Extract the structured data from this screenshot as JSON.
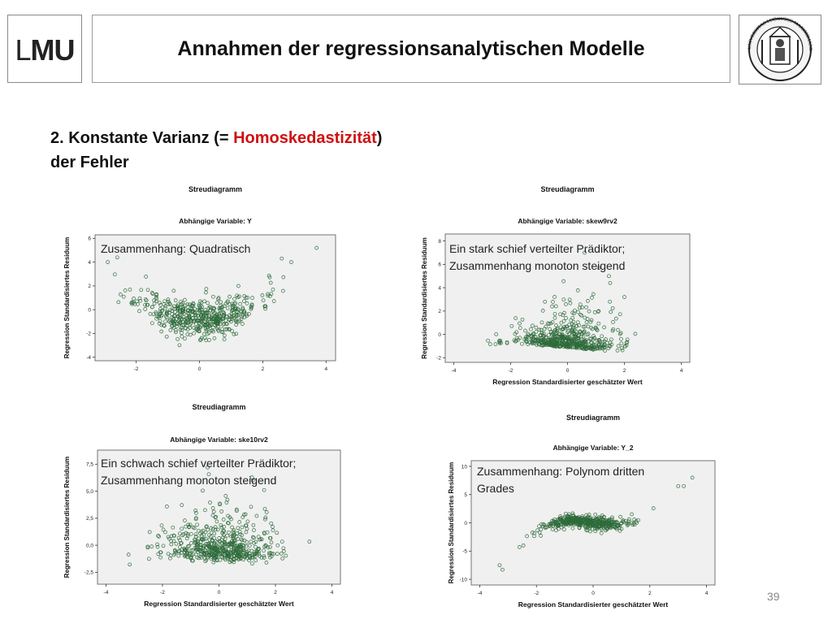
{
  "header": {
    "logo_text_l": "L",
    "logo_text_mu": "MU",
    "title": "Annahmen der regressionsanalytischen Modelle",
    "seal_text": "UNIVERSITAS LUDOVICO MAXIMILIANEA"
  },
  "heading": {
    "part1": "2. Konstante Varianz (= ",
    "highlight": "Homoskedastizität",
    "part2": ")",
    "line2": "der Fehler"
  },
  "accent_colors": {
    "highlight": "#d01010",
    "points": "#2e6b3a"
  },
  "page_number": "39",
  "chart_data": [
    {
      "type": "scatter",
      "title": "Streudiagramm",
      "subtitle": "Abhängige Variable: Y",
      "xlabel": "",
      "ylabel": "Regression Standardisiertes Residuum",
      "annotation": [
        "Zusammenhang: Quadratisch"
      ],
      "xlim": [
        -3.3,
        4.3
      ],
      "ylim": [
        -4.3,
        6.3
      ],
      "xticks": [
        -2,
        0,
        2,
        4
      ],
      "xtick_labels": [
        "-2",
        "0",
        "2",
        "4"
      ],
      "yticks": [
        -4,
        -2,
        0,
        2,
        4,
        6
      ],
      "ytick_labels": [
        "-4",
        "-2",
        "0",
        "2",
        "4",
        "6"
      ],
      "pattern": "quadratic",
      "n_points": 520,
      "outliers": [
        [
          3.7,
          5.2
        ],
        [
          2.6,
          4.3
        ],
        [
          2.9,
          4.0
        ],
        [
          -2.9,
          4.0
        ],
        [
          -2.6,
          4.4
        ]
      ]
    },
    {
      "type": "scatter",
      "title": "Streudiagramm",
      "subtitle": "Abhängige Variable: skew9rv2",
      "xlabel": "Regression Standardisierter geschätzter Wert",
      "ylabel": "Regression Standardisiertes Residuum",
      "annotation": [
        "Ein stark schief verteilter Prädiktor;",
        "Zusammenhang monoton steigend"
      ],
      "xlim": [
        -4.3,
        4.3
      ],
      "ylim": [
        -2.4,
        8.6
      ],
      "xticks": [
        -4,
        -2,
        0,
        2,
        4
      ],
      "xtick_labels": [
        "-4",
        "-2",
        "0",
        "2",
        "4"
      ],
      "yticks": [
        -2,
        0,
        2,
        4,
        6,
        8
      ],
      "ytick_labels": [
        "-2",
        "0",
        "2",
        "4",
        "6",
        "8"
      ],
      "pattern": "skew_strong",
      "n_points": 560,
      "outliers": [
        [
          0.6,
          7.0
        ],
        [
          1.1,
          5.7
        ],
        [
          1.5,
          4.4
        ],
        [
          2.0,
          3.2
        ]
      ]
    },
    {
      "type": "scatter",
      "title": "Streudiagramm",
      "subtitle": "Abhängige Variable: ske10rv2",
      "xlabel": "Regression Standardisierter geschätzter Wert",
      "ylabel": "Regression Standardisiertes Residuum",
      "annotation": [
        "Ein schwach schief verteilter Prädiktor;",
        "Zusammenhang monoton steigend"
      ],
      "xlim": [
        -4.3,
        4.3
      ],
      "ylim": [
        -3.6,
        8.8
      ],
      "xticks": [
        -4,
        -2,
        0,
        2,
        4
      ],
      "xtick_labels": [
        "-4",
        "-2",
        "0",
        "2",
        "4"
      ],
      "yticks": [
        -2.5,
        0,
        2.5,
        5,
        7.5
      ],
      "ytick_labels": [
        "-2,5",
        "0,0",
        "2,5",
        "5,0",
        "7,5"
      ],
      "pattern": "skew_weak",
      "n_points": 560,
      "outliers": [
        [
          -0.4,
          7.2
        ],
        [
          1.2,
          6.0
        ],
        [
          1.6,
          5.1
        ]
      ]
    },
    {
      "type": "scatter",
      "title": "Streudiagramm",
      "subtitle": "Abhängige Variable: Y_2",
      "xlabel": "Regression Standardisierter geschätzter Wert",
      "ylabel": "Regression Standardisiertes Residuum",
      "annotation": [
        "Zusammenhang: Polynom dritten",
        "Grades"
      ],
      "xlim": [
        -4.3,
        4.3
      ],
      "ylim": [
        -11,
        11
      ],
      "xticks": [
        -4,
        -2,
        0,
        2,
        4
      ],
      "xtick_labels": [
        "-4",
        "-2",
        "0",
        "2",
        "4"
      ],
      "yticks": [
        -10,
        -5,
        0,
        5,
        10
      ],
      "ytick_labels": [
        "-10",
        "-5",
        "0",
        "5",
        "10"
      ],
      "pattern": "cubic",
      "n_points": 460,
      "outliers": [
        [
          -3.3,
          -7.5
        ],
        [
          -3.2,
          -8.3
        ],
        [
          -2.6,
          -4.3
        ],
        [
          3.5,
          8.0
        ],
        [
          3.2,
          6.5
        ],
        [
          3.0,
          6.5
        ]
      ]
    }
  ]
}
